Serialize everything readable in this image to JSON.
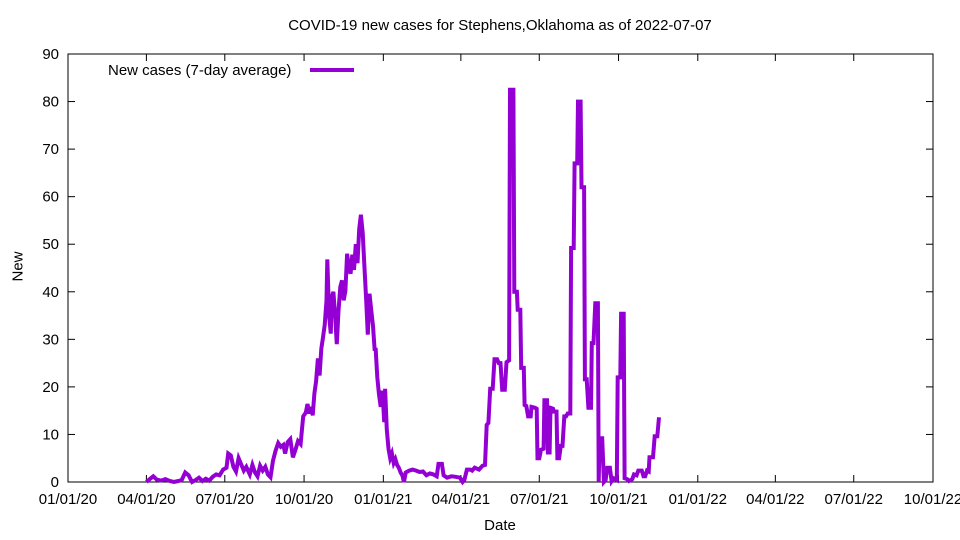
{
  "chart_data": {
    "type": "line",
    "title": "COVID-19 new cases for Stephens,Oklahoma as of 2022-07-07",
    "xlabel": "Date",
    "ylabel": "New",
    "ylim": [
      0,
      90
    ],
    "yticks": [
      "0",
      "10",
      "20",
      "30",
      "40",
      "50",
      "60",
      "70",
      "80",
      "90"
    ],
    "xtick_labels": [
      "01/01/20",
      "04/01/20",
      "07/01/20",
      "10/01/20",
      "01/01/21",
      "04/01/21",
      "07/01/21",
      "10/01/21",
      "01/01/22",
      "04/01/22",
      "07/01/22",
      "10/01/22"
    ],
    "x_day_range": [
      0,
      1004
    ],
    "xtick_days": [
      0,
      91,
      182,
      274,
      366,
      456,
      547,
      639,
      731,
      821,
      912,
      1004
    ],
    "legend": {
      "position": "top-left"
    },
    "grid": false,
    "series": [
      {
        "name": "New cases (7-day average)",
        "color": "#9400d3",
        "points": [
          [
            91,
            0
          ],
          [
            95,
            0.6
          ],
          [
            99,
            1.2
          ],
          [
            103,
            0.5
          ],
          [
            108,
            0.3
          ],
          [
            113,
            0.6
          ],
          [
            118,
            0.2
          ],
          [
            123,
            0
          ],
          [
            128,
            0.2
          ],
          [
            132,
            0.4
          ],
          [
            136,
            2
          ],
          [
            140,
            1.4
          ],
          [
            144,
            0
          ],
          [
            148,
            0.4
          ],
          [
            152,
            0.9
          ],
          [
            156,
            0.2
          ],
          [
            160,
            0.7
          ],
          [
            164,
            0.3
          ],
          [
            168,
            1.1
          ],
          [
            172,
            1.6
          ],
          [
            176,
            1.4
          ],
          [
            180,
            2.6
          ],
          [
            184,
            3
          ],
          [
            186,
            6
          ],
          [
            189,
            5.6
          ],
          [
            192,
            3.2
          ],
          [
            195,
            2.2
          ],
          [
            198,
            5
          ],
          [
            201,
            3.7
          ],
          [
            204,
            2.4
          ],
          [
            207,
            3.2
          ],
          [
            211,
            1.6
          ],
          [
            214,
            3.6
          ],
          [
            217,
            2
          ],
          [
            220,
            1.2
          ],
          [
            223,
            3.4
          ],
          [
            226,
            2.4
          ],
          [
            229,
            3.2
          ],
          [
            232,
            1.6
          ],
          [
            235,
            1
          ],
          [
            238,
            4.5
          ],
          [
            241,
            6.6
          ],
          [
            244,
            8.2
          ],
          [
            247,
            7.4
          ],
          [
            250,
            7.8
          ],
          [
            252,
            6
          ],
          [
            255,
            8.4
          ],
          [
            258,
            9
          ],
          [
            261,
            5.2
          ],
          [
            264,
            6.8
          ],
          [
            267,
            8.6
          ],
          [
            270,
            8
          ],
          [
            273,
            13.8
          ],
          [
            276,
            14.6
          ],
          [
            278,
            16.4
          ],
          [
            280,
            14.4
          ],
          [
            282,
            15.8
          ],
          [
            284,
            14
          ],
          [
            286,
            18.6
          ],
          [
            288,
            21.2
          ],
          [
            290,
            26
          ],
          [
            292,
            22.4
          ],
          [
            294,
            28
          ],
          [
            296,
            30.4
          ],
          [
            298,
            33
          ],
          [
            300,
            38.2
          ],
          [
            301,
            46.8
          ],
          [
            303,
            35
          ],
          [
            305,
            31.2
          ],
          [
            306,
            38.8
          ],
          [
            308,
            40
          ],
          [
            310,
            35
          ],
          [
            312,
            29
          ],
          [
            314,
            36
          ],
          [
            316,
            41
          ],
          [
            318,
            42.4
          ],
          [
            320,
            38.2
          ],
          [
            322,
            40.2
          ],
          [
            324,
            48
          ],
          [
            326,
            45
          ],
          [
            328,
            43.8
          ],
          [
            330,
            47.8
          ],
          [
            332,
            44.6
          ],
          [
            334,
            50
          ],
          [
            336,
            46
          ],
          [
            338,
            53.2
          ],
          [
            340,
            56.2
          ],
          [
            342,
            52.4
          ],
          [
            344,
            45.4
          ],
          [
            346,
            38.6
          ],
          [
            348,
            31
          ],
          [
            350,
            39.6
          ],
          [
            352,
            36
          ],
          [
            354,
            32.8
          ],
          [
            356,
            27.6
          ],
          [
            357,
            28.2
          ],
          [
            359,
            22
          ],
          [
            361,
            18.4
          ],
          [
            363,
            15.8
          ],
          [
            365,
            19.2
          ],
          [
            367,
            12.6
          ],
          [
            368,
            19.6
          ],
          [
            370,
            11
          ],
          [
            372,
            7
          ],
          [
            374,
            5
          ],
          [
            376,
            6
          ],
          [
            378,
            4
          ],
          [
            380,
            4.8
          ],
          [
            382,
            3.6
          ],
          [
            384,
            3
          ],
          [
            386,
            2
          ],
          [
            388,
            1.4
          ],
          [
            390,
            0
          ],
          [
            392,
            2
          ],
          [
            396,
            2.4
          ],
          [
            400,
            2.6
          ],
          [
            404,
            2.4
          ],
          [
            408,
            2.1
          ],
          [
            412,
            2.2
          ],
          [
            416,
            1.4
          ],
          [
            420,
            1.8
          ],
          [
            424,
            1.6
          ],
          [
            428,
            1.2
          ],
          [
            430,
            3.8
          ],
          [
            434,
            3.8
          ],
          [
            436,
            1.4
          ],
          [
            440,
            0.9
          ],
          [
            445,
            1.2
          ],
          [
            450,
            1.1
          ],
          [
            455,
            0.9
          ],
          [
            458,
            0
          ],
          [
            460,
            0.4
          ],
          [
            463,
            2.6
          ],
          [
            467,
            2.6
          ],
          [
            469,
            2.4
          ],
          [
            472,
            3
          ],
          [
            477,
            2.6
          ],
          [
            481,
            3.4
          ],
          [
            484,
            3.6
          ],
          [
            486,
            12
          ],
          [
            488,
            12.4
          ],
          [
            490,
            19.6
          ],
          [
            493,
            19.6
          ],
          [
            495,
            25.8
          ],
          [
            498,
            25.8
          ],
          [
            500,
            25
          ],
          [
            502,
            25
          ],
          [
            504,
            19.4
          ],
          [
            507,
            19.4
          ],
          [
            509,
            25.2
          ],
          [
            512,
            25.6
          ],
          [
            513,
            82.5
          ],
          [
            517,
            82.5
          ],
          [
            518,
            40
          ],
          [
            521,
            40
          ],
          [
            522,
            36.2
          ],
          [
            525,
            36.2
          ],
          [
            526,
            24
          ],
          [
            529,
            24
          ],
          [
            530,
            16.2
          ],
          [
            532,
            16
          ],
          [
            534,
            13.8
          ],
          [
            537,
            13.8
          ],
          [
            538,
            15.8
          ],
          [
            542,
            15.6
          ],
          [
            544,
            15.4
          ],
          [
            545,
            5
          ],
          [
            547,
            5
          ],
          [
            549,
            6.8
          ],
          [
            552,
            7
          ],
          [
            553,
            17.2
          ],
          [
            556,
            17.2
          ],
          [
            557,
            6.2
          ],
          [
            559,
            6.2
          ],
          [
            560,
            15.6
          ],
          [
            563,
            15.4
          ],
          [
            564,
            14.8
          ],
          [
            567,
            14.8
          ],
          [
            568,
            5
          ],
          [
            570,
            5
          ],
          [
            572,
            7.6
          ],
          [
            574,
            7.6
          ],
          [
            576,
            13.8
          ],
          [
            578,
            13.8
          ],
          [
            580,
            14.4
          ],
          [
            583,
            14.4
          ],
          [
            584,
            49.2
          ],
          [
            587,
            49.2
          ],
          [
            588,
            67
          ],
          [
            591,
            67
          ],
          [
            592,
            80
          ],
          [
            595,
            80
          ],
          [
            596,
            62
          ],
          [
            599,
            62
          ],
          [
            600,
            21.6
          ],
          [
            602,
            21.6
          ],
          [
            604,
            15.6
          ],
          [
            607,
            15.6
          ],
          [
            608,
            29.2
          ],
          [
            610,
            29.2
          ],
          [
            612,
            37.6
          ],
          [
            615,
            37.6
          ],
          [
            616,
            0
          ],
          [
            617,
            9.2
          ],
          [
            620,
            9.2
          ],
          [
            622,
            0
          ],
          [
            624,
            0.4
          ],
          [
            626,
            3
          ],
          [
            629,
            3
          ],
          [
            631,
            0.2
          ],
          [
            633,
            0.8
          ],
          [
            637,
            0.4
          ],
          [
            638,
            22
          ],
          [
            641,
            22
          ],
          [
            642,
            35.4
          ],
          [
            645,
            35.4
          ],
          [
            646,
            0.8
          ],
          [
            649,
            0.6
          ],
          [
            651,
            0.2
          ],
          [
            655,
            0.6
          ],
          [
            657,
            1.6
          ],
          [
            660,
            1.4
          ],
          [
            662,
            2.4
          ],
          [
            666,
            2.4
          ],
          [
            668,
            1.2
          ],
          [
            670,
            1.2
          ],
          [
            672,
            2.4
          ],
          [
            674,
            2.2
          ],
          [
            675,
            5.2
          ],
          [
            679,
            5.2
          ],
          [
            681,
            9.6
          ],
          [
            684,
            9.6
          ],
          [
            686,
            13.6
          ]
        ]
      }
    ]
  }
}
